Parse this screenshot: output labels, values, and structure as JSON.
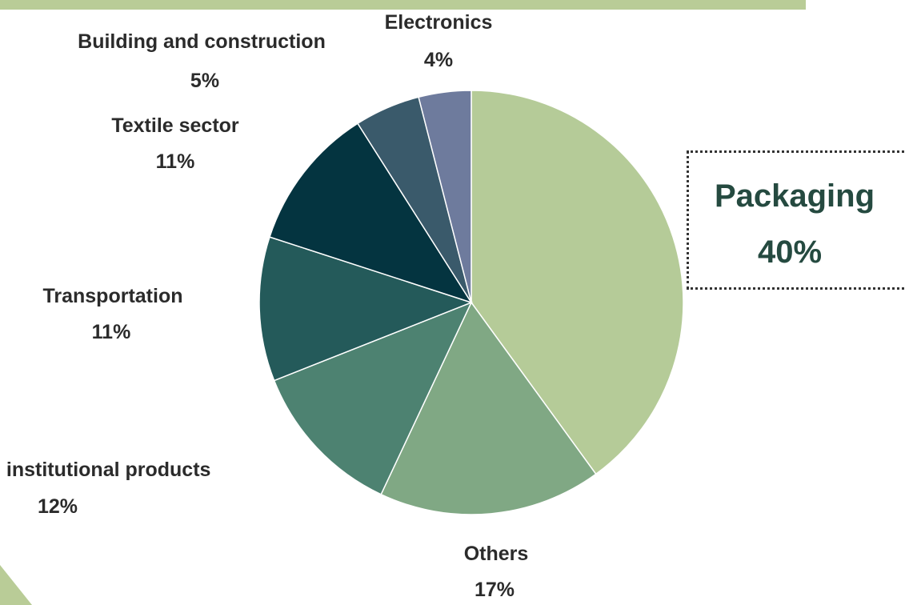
{
  "chart_data": {
    "type": "pie",
    "title": "",
    "slices": [
      {
        "label": "Packaging",
        "value": 40,
        "pct_label": "40%",
        "color": "#b5cb98"
      },
      {
        "label": "Others",
        "value": 17,
        "pct_label": "17%",
        "color": "#80a884"
      },
      {
        "label": "Consumer and institutional products",
        "visible_label": "l institutional products",
        "value": 12,
        "pct_label": "12%",
        "color": "#4d8271"
      },
      {
        "label": "Transportation",
        "value": 11,
        "pct_label": "11%",
        "color": "#245a5a"
      },
      {
        "label": "Textile sector",
        "value": 11,
        "pct_label": "11%",
        "color": "#043440"
      },
      {
        "label": "Building and construction",
        "value": 5,
        "pct_label": "5%",
        "color": "#3a5a6b"
      },
      {
        "label": "Electronics",
        "value": 4,
        "pct_label": "4%",
        "color": "#6e7b9d"
      }
    ],
    "legend": "none",
    "highlight": "Packaging",
    "accent_colors": {
      "top_band": "#b9cc97",
      "corner": "#b9cc97"
    }
  }
}
